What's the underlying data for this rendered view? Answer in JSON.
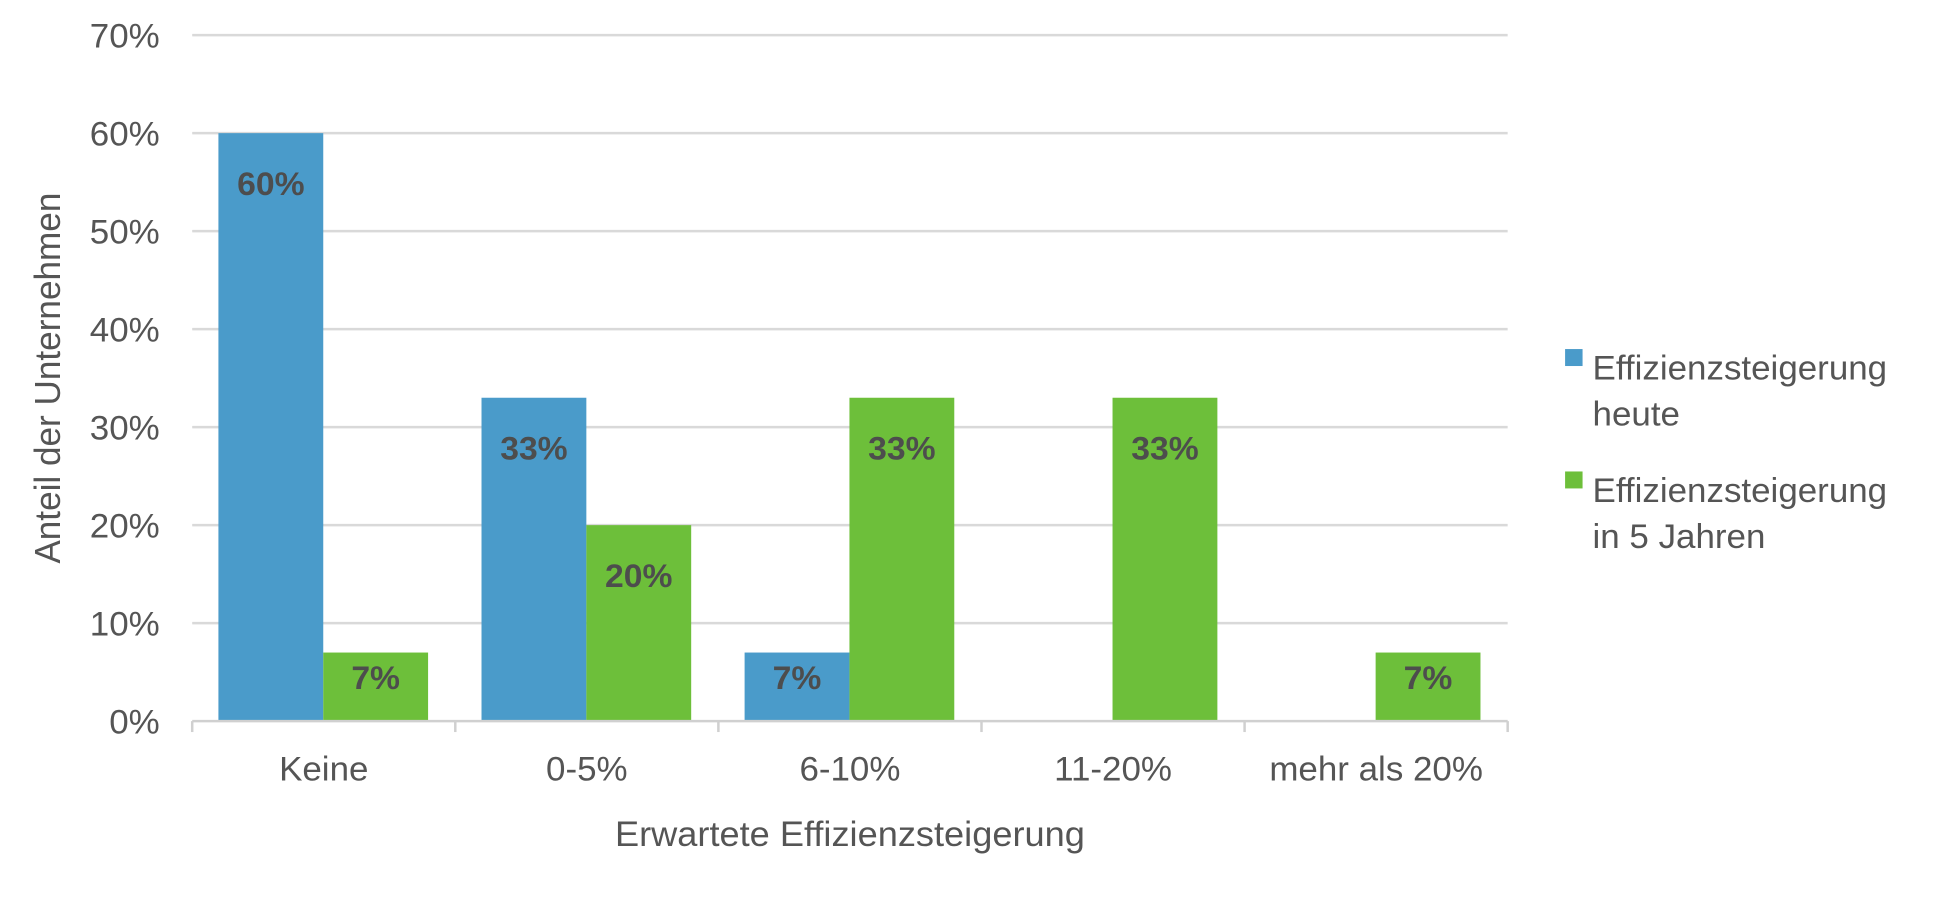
{
  "chart_data": {
    "type": "bar",
    "xlabel": "Erwartete Effizienzsteigerung",
    "ylabel": "Anteil der Unternehmen",
    "categories": [
      "Keine",
      "0-5%",
      "6-10%",
      "11-20%",
      "mehr als 20%"
    ],
    "series": [
      {
        "name": "Effizienzsteigerung heute",
        "legend_lines": [
          "Effizienzsteigerung",
          "heute"
        ],
        "color": "#4a9bca",
        "values": [
          60,
          33,
          7,
          0,
          0
        ],
        "labels": [
          "60%",
          "33%",
          "7%",
          "",
          ""
        ]
      },
      {
        "name": "Effizienzsteigerung in 5 Jahren",
        "legend_lines": [
          "Effizienzsteigerung",
          "in 5 Jahren"
        ],
        "color": "#6dbf3a",
        "values": [
          7,
          20,
          33,
          33,
          7
        ],
        "labels": [
          "7%",
          "20%",
          "33%",
          "33%",
          "7%"
        ]
      }
    ],
    "ylim": [
      0,
      70
    ],
    "yticks": [
      "0%",
      "10%",
      "20%",
      "30%",
      "40%",
      "50%",
      "60%",
      "70%"
    ],
    "grid": true,
    "legend": "right"
  }
}
